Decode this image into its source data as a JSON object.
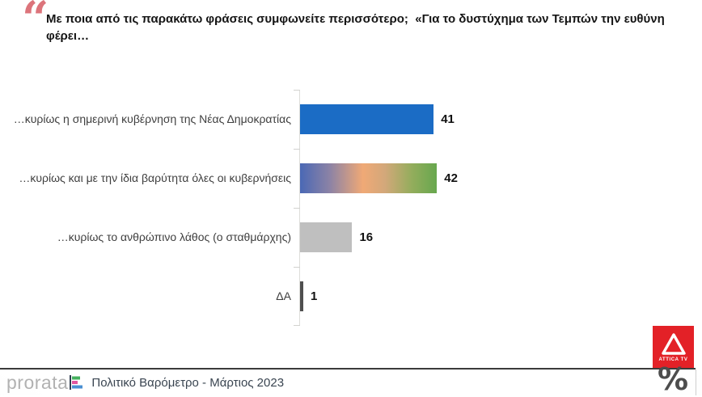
{
  "title": {
    "quote_mark": "“",
    "text": "Με ποια από τις παρακάτω φράσεις συμφωνείτε περισσότερο;  «Για το δυστύχημα των Τεμπών την ευθύνη φέρει…"
  },
  "chart_data": {
    "type": "bar",
    "orientation": "horizontal",
    "title": "Για το δυστύχημα των Τεμπών την ευθύνη φέρει…",
    "categories": [
      "…κυρίως η σημερινή κυβέρνηση της Νέας Δημοκρατίας",
      "…κυρίως και με την ίδια βαρύτητα όλες οι κυβερνήσεις",
      "…κυρίως το ανθρώπινο λάθος (ο σταθμάρχης)",
      "ΔΑ"
    ],
    "values": [
      41,
      42,
      16,
      1
    ],
    "value_labels": [
      "41",
      "42",
      "16",
      "1"
    ],
    "unit": "percent",
    "xlim": [
      0,
      100
    ],
    "grid": false,
    "legend": false,
    "bar_colors": [
      "#1b6cc5",
      "linear-gradient(90deg, #4a68b5 0%, #8d83a5 22%, #f0a976 46%, #d3a87a 62%, #93ad5c 82%, #67a74e 100%)",
      "#bfbfbf",
      "#4f4f4f"
    ]
  },
  "footer": {
    "logo_text": "prorata",
    "logo_icon_colors": {
      "axis": "#2e3b4e",
      "bar_top": "#45b05e",
      "bar_mid": "#e0559f",
      "bar_bottom": "#4a8fd2"
    },
    "caption": "Πολιτικό Βαρόμετρο - Μάρτιος 2023",
    "percent_symbol": "%"
  },
  "badge": {
    "label": "ATTICA TV",
    "bg_color": "#e32127"
  }
}
